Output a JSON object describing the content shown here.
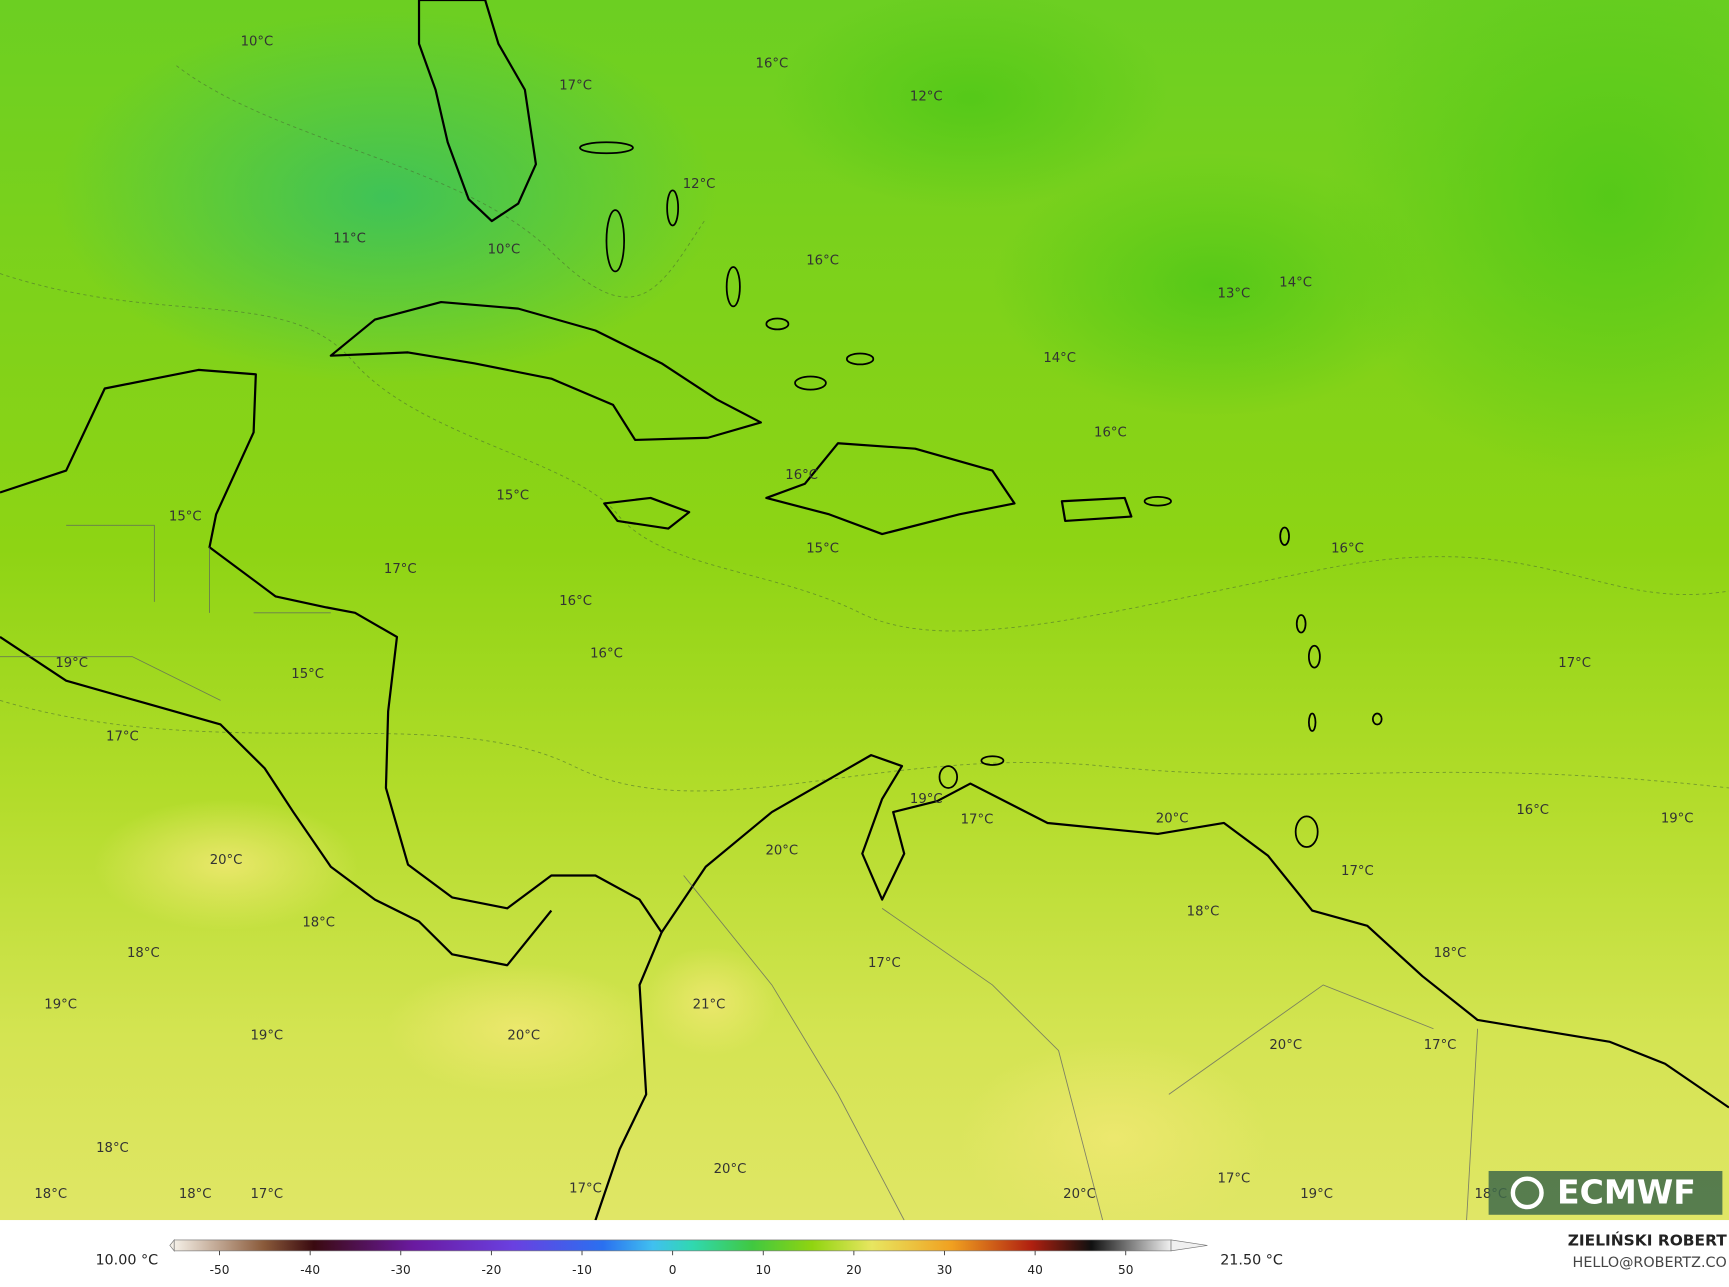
{
  "map": {
    "labels": [
      "10°C",
      "17°C",
      "16°C",
      "12°C",
      "12°C",
      "11°C",
      "10°C",
      "16°C",
      "13°C",
      "14°C",
      "14°C",
      "16°C",
      "16°C",
      "15°C",
      "15°C",
      "15°C",
      "16°C",
      "17°C",
      "16°C",
      "16°C",
      "19°C",
      "15°C",
      "17°C",
      "17°C",
      "19°C",
      "17°C",
      "20°C",
      "16°C",
      "19°C",
      "20°C",
      "20°C",
      "17°C",
      "18°C",
      "18°C",
      "18°C",
      "18°C",
      "17°C",
      "21°C",
      "19°C",
      "19°C",
      "20°C",
      "20°C",
      "17°C",
      "18°C",
      "20°C",
      "17°C",
      "17°C",
      "18°C",
      "18°C",
      "17°C",
      "20°C",
      "19°C",
      "18°C"
    ]
  },
  "colorbar": {
    "min_label": "10.00 °C",
    "max_label": "21.50 °C",
    "lim": [
      -55,
      55
    ],
    "ticks": [
      -50,
      -40,
      -30,
      -20,
      -10,
      0,
      10,
      20,
      30,
      40,
      50
    ]
  },
  "credits": {
    "author": "ZIELIŃSKI ROBERT",
    "contact": "HELLO@ROBERTZ.CO",
    "logo": "ECMWF"
  }
}
